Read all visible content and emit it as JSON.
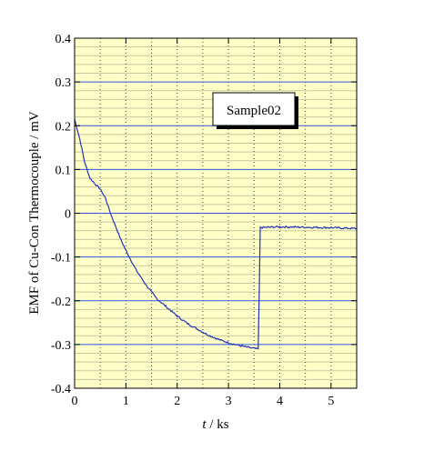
{
  "chart_data": {
    "type": "line",
    "title": "",
    "xlabel_var": "t",
    "xlabel_sep": "/",
    "xlabel_unit": "ks",
    "ylabel": "EMF of Cu-Con Thermocouple / mV",
    "xlim": [
      0,
      5.5
    ],
    "ylim": [
      -0.4,
      0.4
    ],
    "xticks": [
      "0",
      "1",
      "2",
      "3",
      "4",
      "5"
    ],
    "yticks": [
      "-0.4",
      "-0.3",
      "-0.2",
      "-0.1",
      "0",
      "0.1",
      "0.2",
      "0.3",
      "0.4"
    ],
    "grid": true,
    "legend_position": "top-right",
    "series": [
      {
        "name": "Sample02",
        "x": [
          0,
          0.1,
          0.2,
          0.3,
          0.4,
          0.5,
          0.6,
          0.7,
          0.8,
          0.9,
          1.0,
          1.2,
          1.4,
          1.6,
          1.8,
          2.0,
          2.2,
          2.4,
          2.6,
          2.8,
          3.0,
          3.2,
          3.4,
          3.55,
          3.58,
          3.6,
          3.62,
          3.8,
          4.0,
          4.5,
          5.0,
          5.5
        ],
        "values": [
          0.215,
          0.17,
          0.115,
          0.08,
          0.067,
          0.055,
          0.035,
          0.0,
          -0.03,
          -0.06,
          -0.085,
          -0.13,
          -0.165,
          -0.195,
          -0.215,
          -0.235,
          -0.252,
          -0.265,
          -0.278,
          -0.288,
          -0.296,
          -0.302,
          -0.307,
          -0.31,
          -0.31,
          -0.18,
          -0.033,
          -0.032,
          -0.031,
          -0.032,
          -0.033,
          -0.035
        ],
        "color": "#2233bb"
      }
    ]
  },
  "colors": {
    "background": "#ffffc8",
    "major_grid": "#3355dd",
    "minor_grid": "#c8c8a0",
    "vertical_grid": "#444444",
    "line": "#2233bb"
  }
}
